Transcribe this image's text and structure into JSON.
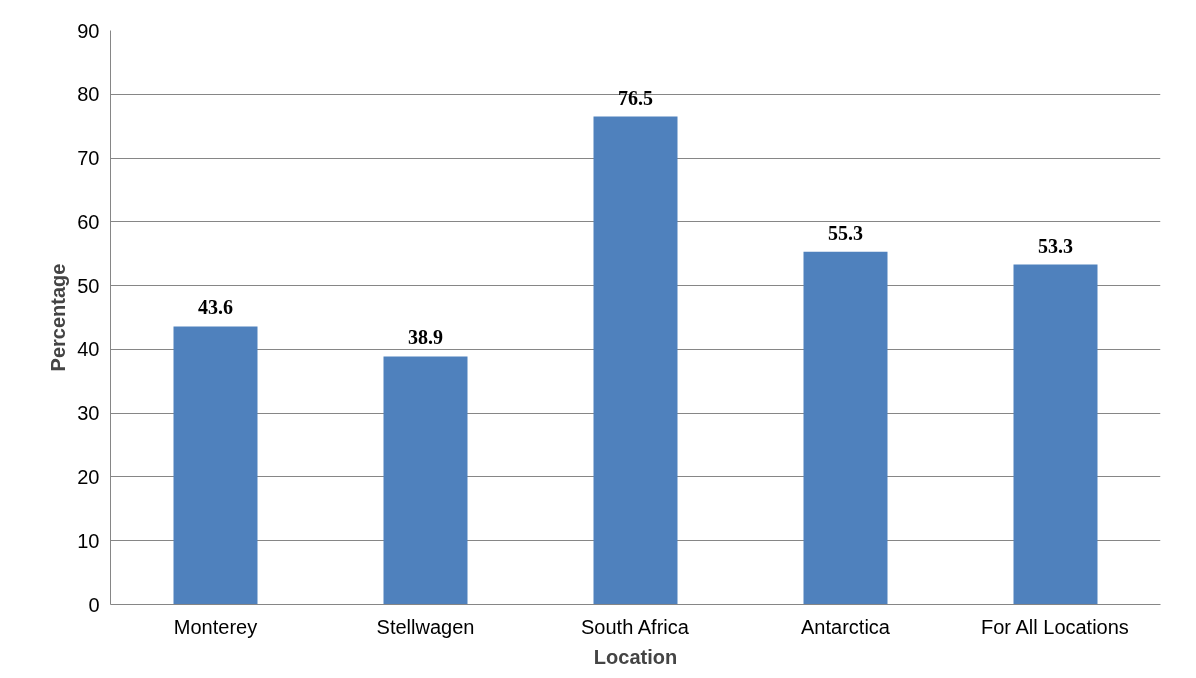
{
  "chart_data": {
    "type": "bar",
    "xlabel": "Location",
    "ylabel": "Percentage",
    "categories": [
      "Monterey",
      "Stellwagen",
      "South Africa",
      "Antarctica",
      "For All Locations"
    ],
    "values": [
      43.6,
      38.9,
      76.5,
      55.3,
      53.3
    ],
    "color": "#4f81bd",
    "ylim": [
      0,
      90
    ],
    "yticks": [
      0,
      10,
      20,
      30,
      40,
      50,
      60,
      70,
      80,
      90
    ],
    "grid": "y",
    "data_labels": true
  }
}
